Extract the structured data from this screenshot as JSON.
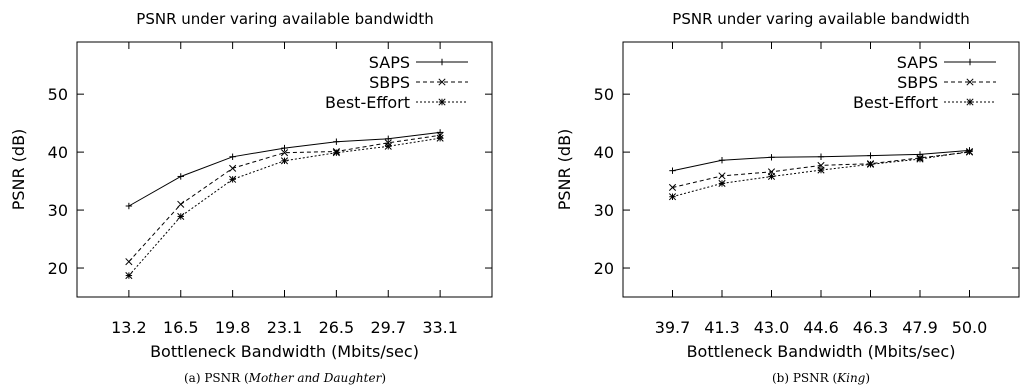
{
  "chart_data": [
    {
      "type": "line",
      "title": "PSNR under varing available bandwidth",
      "xlabel": "Bottleneck Bandwidth (Mbits/sec)",
      "ylabel": "PSNR (dB)",
      "categories": [
        "13.2",
        "16.5",
        "19.8",
        "23.1",
        "26.5",
        "29.7",
        "33.1"
      ],
      "ylim": [
        15,
        59
      ],
      "yticks": [
        20,
        30,
        40,
        50
      ],
      "grid": false,
      "legend_position": "top-right",
      "caption": {
        "prefix": "(a)  PSNR (",
        "name": "Mother and Daughter",
        "suffix": ")"
      },
      "series": [
        {
          "name": "SAPS",
          "style": "solid",
          "marker": "plus",
          "values": [
            30.7,
            35.8,
            39.2,
            40.7,
            41.8,
            42.3,
            43.4
          ]
        },
        {
          "name": "SBPS",
          "style": "dashed",
          "marker": "x",
          "values": [
            21.1,
            31.0,
            37.2,
            39.9,
            40.1,
            41.6,
            42.9
          ]
        },
        {
          "name": "Best-Effort",
          "style": "dotted",
          "marker": "star",
          "values": [
            18.7,
            28.9,
            35.3,
            38.5,
            39.9,
            41.0,
            42.4
          ]
        }
      ]
    },
    {
      "type": "line",
      "title": "PSNR under varing available bandwidth",
      "xlabel": "Bottleneck Bandwidth (Mbits/sec)",
      "ylabel": "PSNR (dB)",
      "categories": [
        "39.7",
        "41.3",
        "43.0",
        "44.6",
        "46.3",
        "47.9",
        "50.0"
      ],
      "ylim": [
        15,
        59
      ],
      "yticks": [
        20,
        30,
        40,
        50
      ],
      "grid": false,
      "legend_position": "top-right",
      "caption": {
        "prefix": "(b)  PSNR (",
        "name": "King",
        "suffix": ")"
      },
      "series": [
        {
          "name": "SAPS",
          "style": "solid",
          "marker": "plus",
          "values": [
            36.8,
            38.6,
            39.1,
            39.2,
            39.4,
            39.6,
            40.3
          ]
        },
        {
          "name": "SBPS",
          "style": "dashed",
          "marker": "x",
          "values": [
            33.9,
            35.9,
            36.6,
            37.7,
            38.0,
            39.0,
            40.0
          ]
        },
        {
          "name": "Best-Effort",
          "style": "dotted",
          "marker": "star",
          "values": [
            32.3,
            34.6,
            35.8,
            36.9,
            37.9,
            38.8,
            40.1
          ]
        }
      ]
    }
  ]
}
